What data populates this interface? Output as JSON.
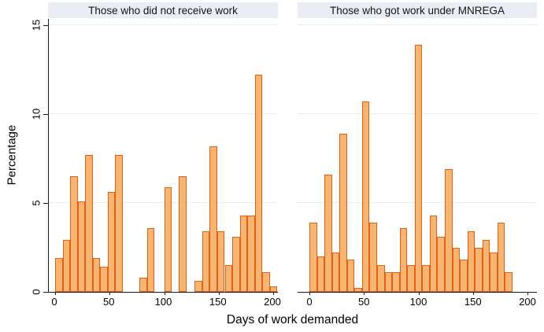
{
  "chart_data": {
    "type": "bar",
    "subtype": "histogram, two panels side by side",
    "xlabel": "Days of work demanded",
    "ylabel": "Percentage",
    "ylim": [
      0,
      15.35
    ],
    "yticks": [
      0,
      5,
      10,
      15
    ],
    "xticks": [
      0,
      50,
      100,
      150,
      200
    ],
    "grid": "horizontal gridlines at 5, 10, 15",
    "legend_position": "none",
    "bin_width_days": 6.9,
    "panels": [
      {
        "title": "Those who did not receive work",
        "bars": [
          {
            "x": 0,
            "h": 1.9
          },
          {
            "x": 6.9,
            "h": 2.9
          },
          {
            "x": 13.8,
            "h": 6.5
          },
          {
            "x": 20.7,
            "h": 5.1
          },
          {
            "x": 27.6,
            "h": 7.7
          },
          {
            "x": 34.5,
            "h": 1.9
          },
          {
            "x": 41.4,
            "h": 1.4
          },
          {
            "x": 48.3,
            "h": 5.6
          },
          {
            "x": 55.2,
            "h": 7.7
          },
          {
            "x": 77.3,
            "h": 0.8
          },
          {
            "x": 84.2,
            "h": 3.6
          },
          {
            "x": 100.2,
            "h": 5.9
          },
          {
            "x": 113.5,
            "h": 6.5
          },
          {
            "x": 128.0,
            "h": 0.6
          },
          {
            "x": 134.9,
            "h": 3.4
          },
          {
            "x": 141.8,
            "h": 8.2
          },
          {
            "x": 148.7,
            "h": 3.4
          },
          {
            "x": 155.6,
            "h": 1.5
          },
          {
            "x": 162.5,
            "h": 3.1
          },
          {
            "x": 169.4,
            "h": 4.3
          },
          {
            "x": 176.3,
            "h": 4.3
          },
          {
            "x": 183.2,
            "h": 12.2
          },
          {
            "x": 190.1,
            "h": 1.1
          },
          {
            "x": 197.0,
            "h": 0.3
          }
        ]
      },
      {
        "title": "Those who got work under MNREGA",
        "bars": [
          {
            "x": 0,
            "h": 3.9
          },
          {
            "x": 6.9,
            "h": 2.0
          },
          {
            "x": 13.8,
            "h": 6.6
          },
          {
            "x": 20.7,
            "h": 2.2
          },
          {
            "x": 27.6,
            "h": 8.9
          },
          {
            "x": 34.5,
            "h": 1.8
          },
          {
            "x": 41.4,
            "h": 0.2
          },
          {
            "x": 48.3,
            "h": 10.7
          },
          {
            "x": 55.2,
            "h": 3.9
          },
          {
            "x": 62.1,
            "h": 1.5
          },
          {
            "x": 69.0,
            "h": 1.1
          },
          {
            "x": 75.9,
            "h": 1.1
          },
          {
            "x": 82.8,
            "h": 3.6
          },
          {
            "x": 89.7,
            "h": 1.5
          },
          {
            "x": 96.6,
            "h": 13.9
          },
          {
            "x": 103.5,
            "h": 1.5
          },
          {
            "x": 110.4,
            "h": 4.3
          },
          {
            "x": 117.3,
            "h": 3.1
          },
          {
            "x": 124.2,
            "h": 6.9
          },
          {
            "x": 131.1,
            "h": 2.5
          },
          {
            "x": 138.0,
            "h": 1.8
          },
          {
            "x": 144.9,
            "h": 3.4
          },
          {
            "x": 151.8,
            "h": 2.5
          },
          {
            "x": 158.7,
            "h": 2.9
          },
          {
            "x": 165.6,
            "h": 2.2
          },
          {
            "x": 172.5,
            "h": 3.9
          },
          {
            "x": 179.4,
            "h": 1.1
          }
        ]
      }
    ],
    "colors": {
      "bar_fill": "#f7b573",
      "bar_border": "#e95d0e",
      "gridline": "#e8ecf1",
      "axis": "#1a1a1a",
      "strip_background": "#eaedf3",
      "strip_text": "#151515",
      "plot_background": "#ffffff",
      "figure_background": "#ffffff"
    }
  }
}
